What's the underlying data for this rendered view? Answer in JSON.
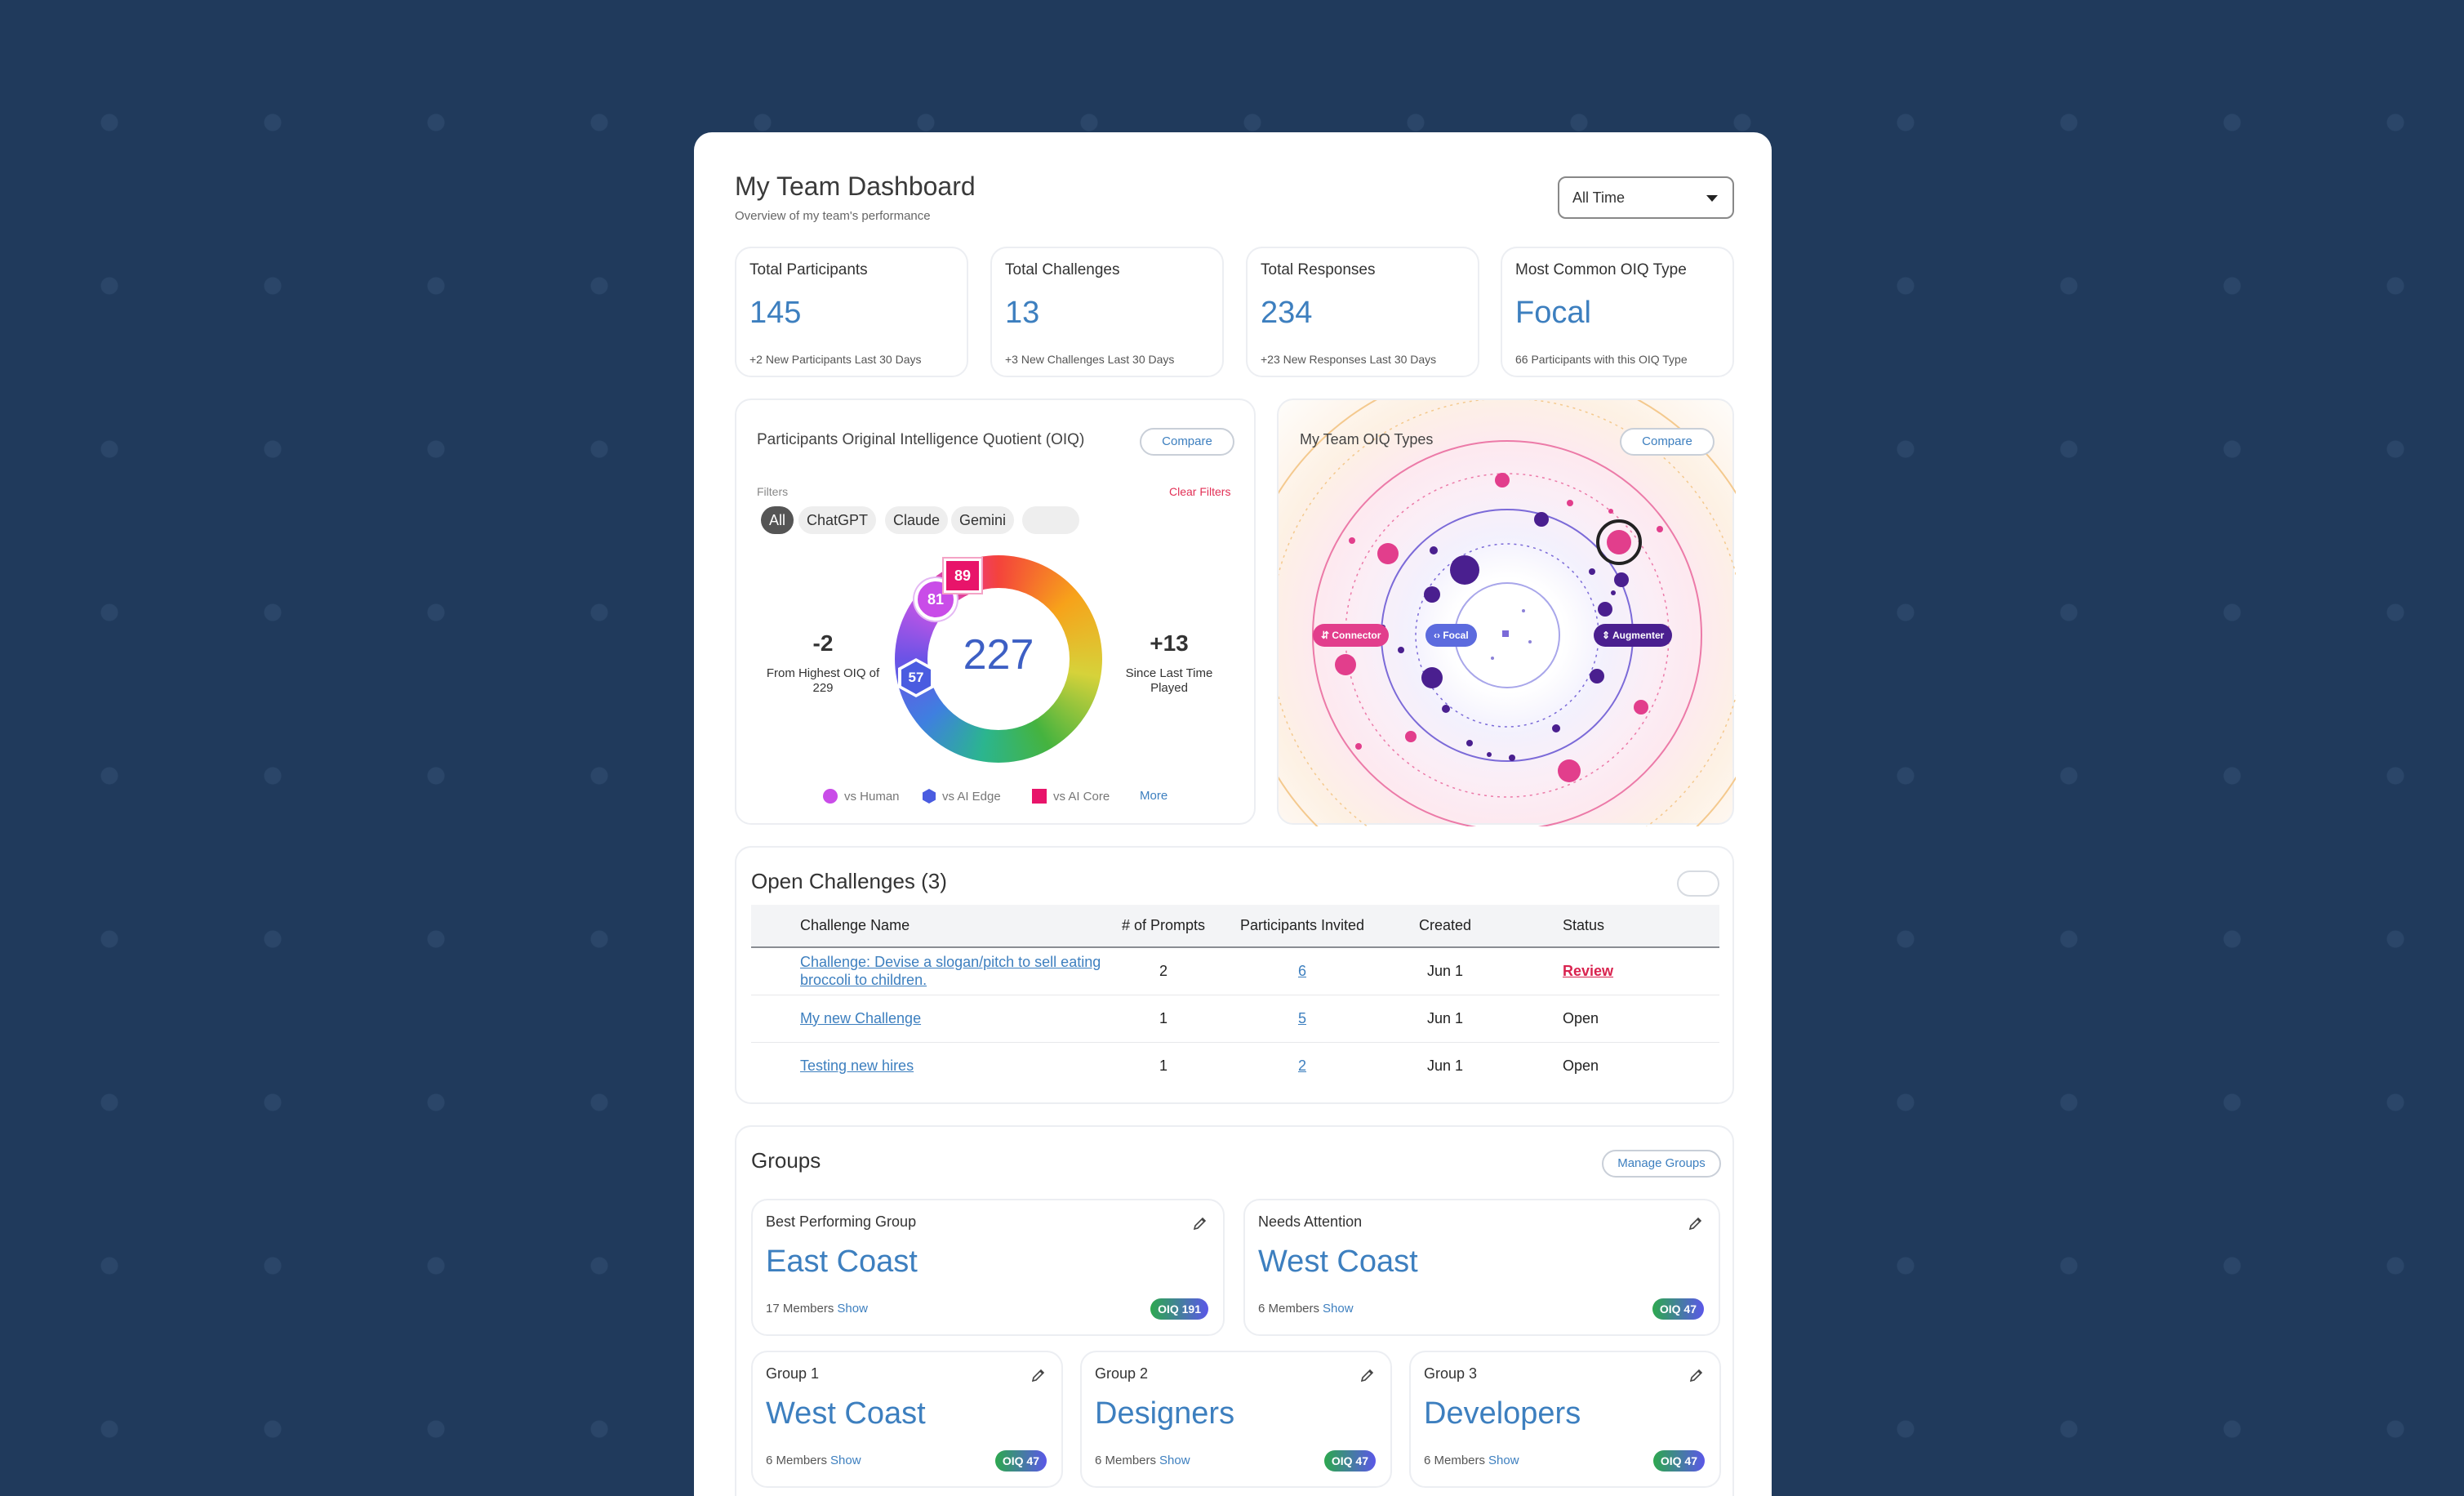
{
  "header": {
    "title": "My Team Dashboard",
    "subtitle": "Overview of my team's performance",
    "time_filter": "All Time"
  },
  "stats": [
    {
      "label": "Total Participants",
      "value": "145",
      "note": "+2 New Participants Last 30 Days"
    },
    {
      "label": "Total Challenges",
      "value": "13",
      "note": "+3 New Challenges Last 30 Days"
    },
    {
      "label": "Total Responses",
      "value": "234",
      "note": "+23 New Responses Last 30 Days"
    },
    {
      "label": "Most Common OIQ Type",
      "value": "Focal",
      "note": "66 Participants with this OIQ Type"
    }
  ],
  "oiq_card": {
    "title": "Participants Original Intelligence Quotient (OIQ)",
    "compare_label": "Compare",
    "filters_label": "Filters",
    "clear_filters_label": "Clear Filters",
    "filters": [
      "All",
      "ChatGPT",
      "Claude",
      "Gemini",
      ""
    ],
    "score": "227",
    "left_delta": "-2",
    "left_note": "From Highest OIQ of 229",
    "right_delta": "+13",
    "right_note": "Since Last Time Played",
    "marker_human": "81",
    "marker_edge": "57",
    "marker_core": "89",
    "legend": [
      "vs Human",
      "vs AI Edge",
      "vs AI Core"
    ],
    "more_label": "More",
    "colors": {
      "human": "#c94ce8",
      "edge": "#4a5ce0",
      "core": "#e8146a"
    }
  },
  "types_card": {
    "title": "My Team OIQ Types",
    "compare_label": "Compare",
    "types": [
      {
        "label": "Connector",
        "color": "#e23e8c"
      },
      {
        "label": "Focal",
        "color": "#5c6bde"
      },
      {
        "label": "Augmenter",
        "color": "#4a1f8f"
      }
    ]
  },
  "challenges": {
    "title": "Open Challenges (3)",
    "columns": [
      "Challenge Name",
      "# of Prompts",
      "Participants Invited",
      "Created",
      "Status"
    ],
    "rows": [
      {
        "name": "Challenge: Devise a slogan/pitch to sell eating broccoli to children.",
        "prompts": "2",
        "invited": "6",
        "created": "Jun 1",
        "status": "Review"
      },
      {
        "name": "My new Challenge",
        "prompts": "1",
        "invited": "5",
        "created": "Jun 1",
        "status": "Open"
      },
      {
        "name": "Testing new hires",
        "prompts": "1",
        "invited": "2",
        "created": "Jun 1",
        "status": "Open"
      }
    ]
  },
  "groups": {
    "title": "Groups",
    "manage_label": "Manage Groups",
    "show_label": "Show",
    "items": [
      {
        "label": "Best Performing Group",
        "name": "East Coast",
        "members": "17 Members",
        "badge": "OIQ 191"
      },
      {
        "label": "Needs Attention",
        "name": "West Coast",
        "members": "6 Members",
        "badge": "OIQ 47"
      },
      {
        "label": "Group 1",
        "name": "West Coast",
        "members": "6 Members",
        "badge": "OIQ 47"
      },
      {
        "label": "Group 2",
        "name": "Designers",
        "members": "6 Members",
        "badge": "OIQ 47"
      },
      {
        "label": "Group 3",
        "name": "Developers",
        "members": "6 Members",
        "badge": "OIQ 47"
      }
    ]
  }
}
